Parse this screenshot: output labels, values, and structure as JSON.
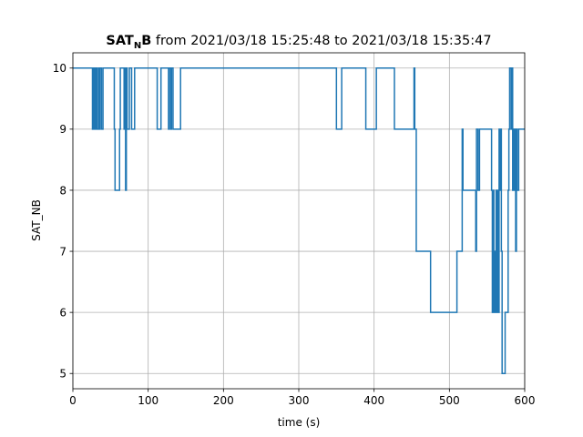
{
  "chart_data": {
    "type": "line",
    "title": {
      "bold_main": "SAT",
      "bold_sub": "N",
      "bold_tail": "B",
      "rest": " from 2021/03/18 15:25:48 to 2021/03/18 15:35:47"
    },
    "xlabel": "time (s)",
    "ylabel": "SAT_NB",
    "xlim": [
      0,
      600
    ],
    "ylim": [
      4.75,
      10.25
    ],
    "xticks": [
      0,
      100,
      200,
      300,
      400,
      500,
      600
    ],
    "yticks": [
      5,
      6,
      7,
      8,
      9,
      10
    ],
    "grid": true,
    "line_color": "#1f77b4",
    "series": [
      {
        "step": "post",
        "x": [
          0,
          26,
          27,
          28,
          29,
          30,
          31,
          32,
          34,
          35,
          36,
          38,
          40,
          55,
          56,
          62,
          63,
          68,
          69,
          70,
          71,
          72,
          75,
          78,
          82,
          112,
          117,
          127,
          128,
          130,
          131,
          133,
          136,
          143,
          350,
          357,
          389,
          403,
          427,
          453,
          454,
          456,
          475,
          510,
          517,
          518,
          520,
          535,
          536,
          538,
          540,
          542,
          556,
          557,
          558,
          559,
          560,
          561,
          562,
          563,
          564,
          565,
          566,
          567,
          568,
          569,
          570,
          572,
          574,
          578,
          579,
          580,
          582,
          583,
          584,
          585,
          586,
          587,
          588,
          589,
          590,
          591,
          592,
          593,
          595,
          597,
          600
        ],
        "y": [
          10,
          9,
          10,
          9,
          10,
          9,
          10,
          9,
          10,
          9,
          10,
          9,
          10,
          9,
          8,
          9,
          10,
          9,
          10,
          8,
          10,
          9,
          10,
          9,
          10,
          9,
          10,
          9,
          10,
          9,
          10,
          9,
          9,
          10,
          9,
          10,
          9,
          10,
          9,
          10,
          9,
          7,
          6,
          7,
          9,
          8,
          8,
          7,
          9,
          8,
          9,
          9,
          8,
          6,
          8,
          6,
          7,
          6,
          8,
          6,
          8,
          6,
          9,
          8,
          9,
          7,
          5,
          5,
          6,
          8,
          9,
          10,
          9,
          10,
          8,
          9,
          8,
          9,
          7,
          9,
          8,
          8,
          9,
          9,
          9,
          9,
          9
        ]
      }
    ]
  }
}
